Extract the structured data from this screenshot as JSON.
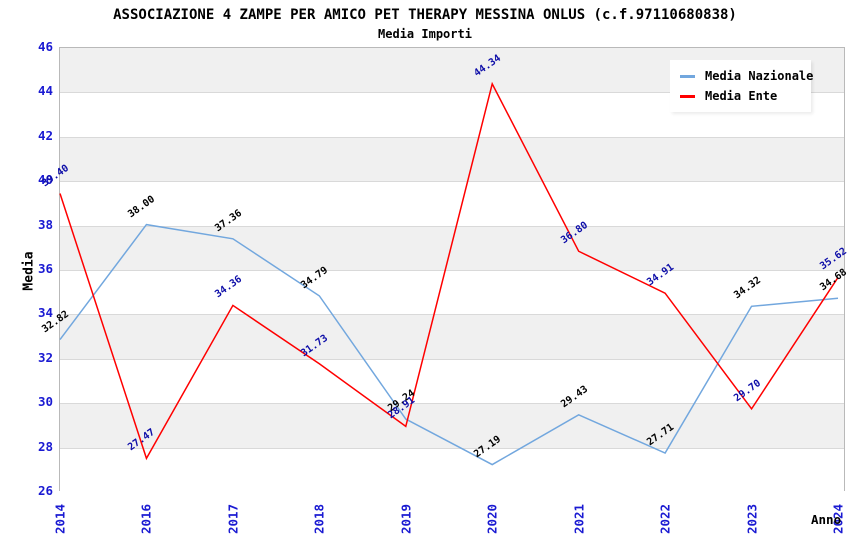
{
  "title": "ASSOCIAZIONE 4 ZAMPE PER AMICO PET THERAPY MESSINA ONLUS (c.f.97110680838)",
  "subtitle": "Media Importi",
  "axes": {
    "y_label": "Media",
    "x_label": "Anno"
  },
  "colors": {
    "tick_label": "#1a1ad2",
    "band_gray": "#f0f0f0",
    "gridline": "#d9d9d9",
    "plot_border": "#b9b9b9"
  },
  "chart_data": {
    "type": "line",
    "categories": [
      "2014",
      "2016",
      "2017",
      "2018",
      "2019",
      "2020",
      "2021",
      "2022",
      "2023",
      "2024"
    ],
    "series": [
      {
        "name": "Media Nazionale",
        "color": "#72a7de",
        "label_color": "#000000",
        "values": [
          32.82,
          38.0,
          37.36,
          34.79,
          29.24,
          27.19,
          29.43,
          27.71,
          34.32,
          34.68
        ]
      },
      {
        "name": "Media Ente",
        "color": "#ff0000",
        "label_color": "#0d0da8",
        "values": [
          39.4,
          27.47,
          34.36,
          31.73,
          28.91,
          44.34,
          36.8,
          34.91,
          29.7,
          35.62
        ]
      }
    ],
    "title": "ASSOCIAZIONE 4 ZAMPE PER AMICO PET THERAPY MESSINA ONLUS (c.f.97110680838)",
    "subtitle": "Media Importi",
    "xlabel": "Anno",
    "ylabel": "Media",
    "ylim": [
      26,
      46
    ],
    "yticks": [
      46,
      44,
      42,
      40,
      38,
      36,
      34,
      32,
      30,
      28,
      26
    ],
    "grid": "horizontal-bands-alternating",
    "legend_position": "top-right",
    "data_labels": "values shown rotated at each point, 2 decimals"
  }
}
